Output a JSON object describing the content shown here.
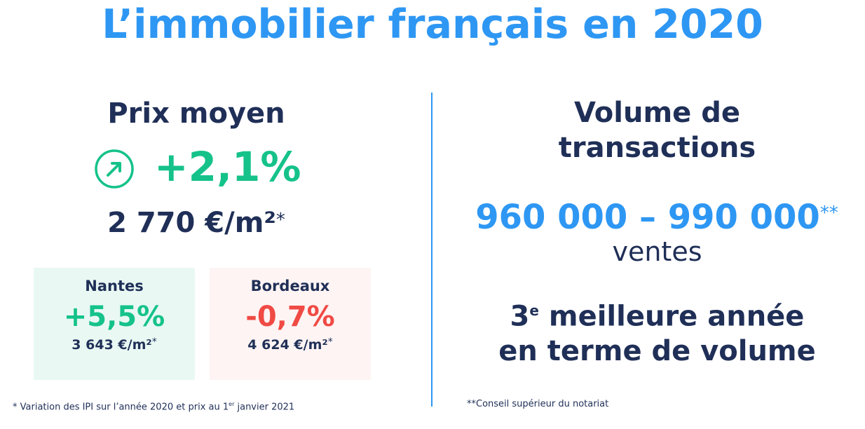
{
  "title": "L’immobilier français en 2020",
  "left": {
    "heading": "Prix moyen",
    "growth_icon": "arrow-up-right-circle-icon",
    "growth": "+2,1%",
    "price": "2 770 €/m²",
    "price_marker": "*",
    "cities": [
      {
        "name": "Nantes",
        "variation": "+5,5%",
        "price": "3 643 €/m²",
        "marker": "*",
        "trend": "up"
      },
      {
        "name": "Bordeaux",
        "variation": "-0,7%",
        "price": "4 624 €/m²",
        "marker": "*",
        "trend": "down"
      }
    ],
    "footnote_before": "* Variation des IPI sur l’année 2020 et prix au 1",
    "footnote_sup": "er",
    "footnote_after": " janvier 2021"
  },
  "right": {
    "heading_line1": "Volume de",
    "heading_line2": "transactions",
    "volume": "960 000 – 990 000",
    "volume_marker": "**",
    "volume_unit": "ventes",
    "rank_number": "3",
    "rank_sup": "e",
    "rank_line1_rest": " meilleure année",
    "rank_line2": "en terme de volume",
    "footnote": "**Conseil supérieur du notariat"
  },
  "colors": {
    "title": "#2e97f3",
    "text": "#1f2f57",
    "positive": "#15c28a",
    "negative": "#f04a45",
    "positive_bg": "#e9f8f3",
    "negative_bg": "#fef4f3"
  }
}
